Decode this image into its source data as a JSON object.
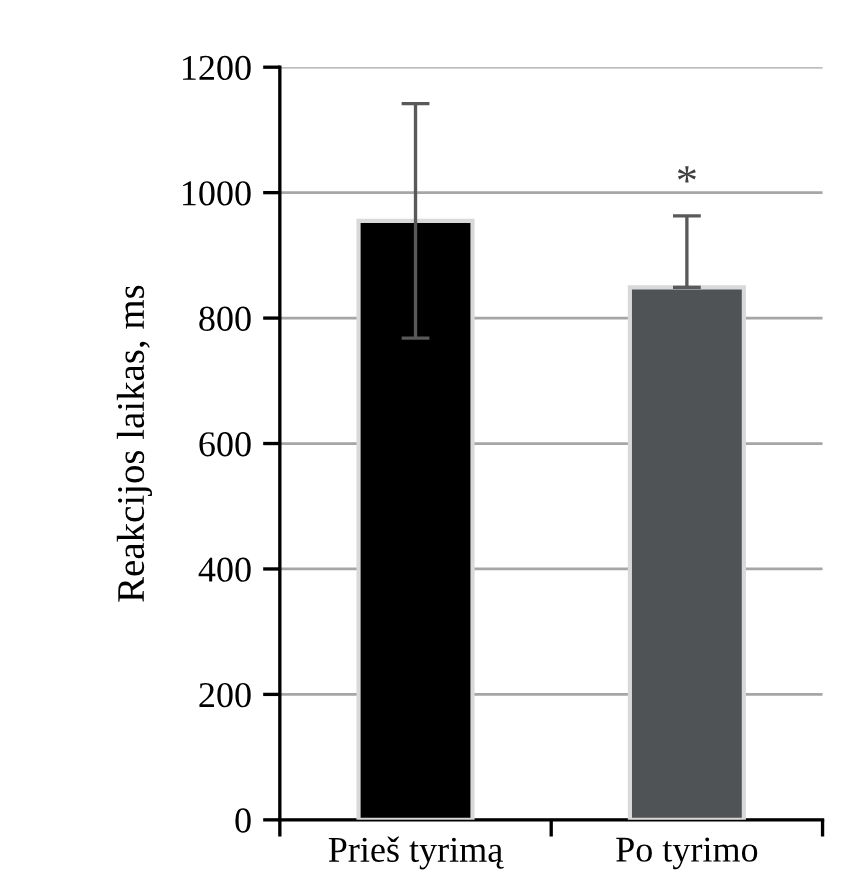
{
  "chart_data": {
    "type": "bar",
    "ylabel": "Reakcijos laikas, ms",
    "categories": [
      "Prieš tyrimą",
      "Po tyrimo"
    ],
    "values": [
      955,
      849
    ],
    "colors": [
      "#000000",
      "#505356"
    ],
    "errors": [
      [
        768,
        1142
      ],
      [
        849,
        963
      ]
    ],
    "ylim": [
      0,
      1200
    ],
    "yticks": [
      0,
      200,
      400,
      600,
      800,
      1000,
      1200
    ],
    "grid": "y",
    "legend": false,
    "annotations": [
      {
        "text": "*",
        "x": "Po tyrimo",
        "y": 963
      }
    ]
  }
}
